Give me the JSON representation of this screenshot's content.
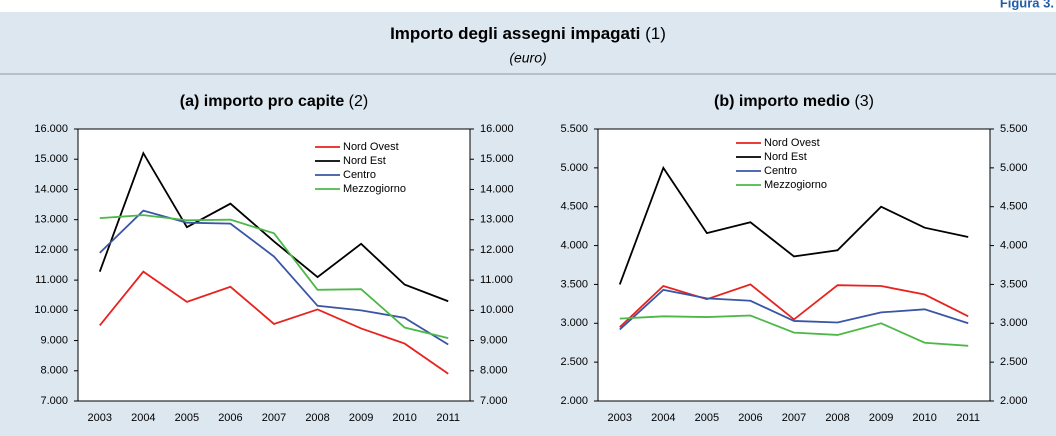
{
  "figure_label": "Figura 3.",
  "header": {
    "title": "Importo degli assegni impagati",
    "title_note": "(1)",
    "subtitle": "(euro)"
  },
  "chart_data": [
    {
      "type": "line",
      "title": "(a) importo pro capite",
      "title_note": "(2)",
      "categories": [
        "2003",
        "2004",
        "2005",
        "2006",
        "2007",
        "2008",
        "2009",
        "2010",
        "2011"
      ],
      "ylim": [
        7000,
        16000
      ],
      "yticks": [
        {
          "value": 7000,
          "label": "7.000"
        },
        {
          "value": 8000,
          "label": "8.000"
        },
        {
          "value": 9000,
          "label": "9.000"
        },
        {
          "value": 10000,
          "label": "10.000"
        },
        {
          "value": 11000,
          "label": "11.000"
        },
        {
          "value": 12000,
          "label": "12.000"
        },
        {
          "value": 13000,
          "label": "13.000"
        },
        {
          "value": 14000,
          "label": "14.000"
        },
        {
          "value": 15000,
          "label": "15.000"
        },
        {
          "value": 16000,
          "label": "16.000"
        }
      ],
      "series": [
        {
          "name": "Nord Ovest",
          "color": "#e8231f",
          "values": [
            9500,
            11280,
            10280,
            10780,
            9550,
            10030,
            9400,
            8900,
            7900
          ]
        },
        {
          "name": "Nord Est",
          "color": "#000000",
          "values": [
            11280,
            15200,
            12750,
            13530,
            12280,
            11100,
            12200,
            10850,
            10300
          ]
        },
        {
          "name": "Centro",
          "color": "#3a55a4",
          "values": [
            11900,
            13300,
            12900,
            12870,
            11780,
            10150,
            10000,
            9750,
            8870
          ]
        },
        {
          "name": "Mezzogiorno",
          "color": "#4db848",
          "values": [
            13050,
            13150,
            12980,
            13000,
            12550,
            10680,
            10700,
            9430,
            9080
          ]
        }
      ]
    },
    {
      "type": "line",
      "title": "(b) importo medio",
      "title_note": "(3)",
      "categories": [
        "2003",
        "2004",
        "2005",
        "2006",
        "2007",
        "2008",
        "2009",
        "2010",
        "2011"
      ],
      "ylim": [
        2000,
        5500
      ],
      "yticks": [
        {
          "value": 2000,
          "label": "2.000"
        },
        {
          "value": 2500,
          "label": "2.500"
        },
        {
          "value": 3000,
          "label": "3.000"
        },
        {
          "value": 3500,
          "label": "3.500"
        },
        {
          "value": 4000,
          "label": "4.000"
        },
        {
          "value": 4500,
          "label": "4.500"
        },
        {
          "value": 5000,
          "label": "5.000"
        },
        {
          "value": 5500,
          "label": "5.500"
        }
      ],
      "series": [
        {
          "name": "Nord Ovest",
          "color": "#e8231f",
          "values": [
            2950,
            3480,
            3310,
            3500,
            3050,
            3490,
            3480,
            3370,
            3090
          ]
        },
        {
          "name": "Nord Est",
          "color": "#000000",
          "values": [
            3500,
            5000,
            4160,
            4300,
            3860,
            3940,
            4500,
            4230,
            4110
          ]
        },
        {
          "name": "Centro",
          "color": "#3a55a4",
          "values": [
            2920,
            3430,
            3320,
            3290,
            3030,
            3010,
            3140,
            3180,
            3000
          ]
        },
        {
          "name": "Mezzogiorno",
          "color": "#4db848",
          "values": [
            3060,
            3090,
            3080,
            3100,
            2880,
            2850,
            3000,
            2750,
            2710
          ]
        }
      ]
    }
  ]
}
